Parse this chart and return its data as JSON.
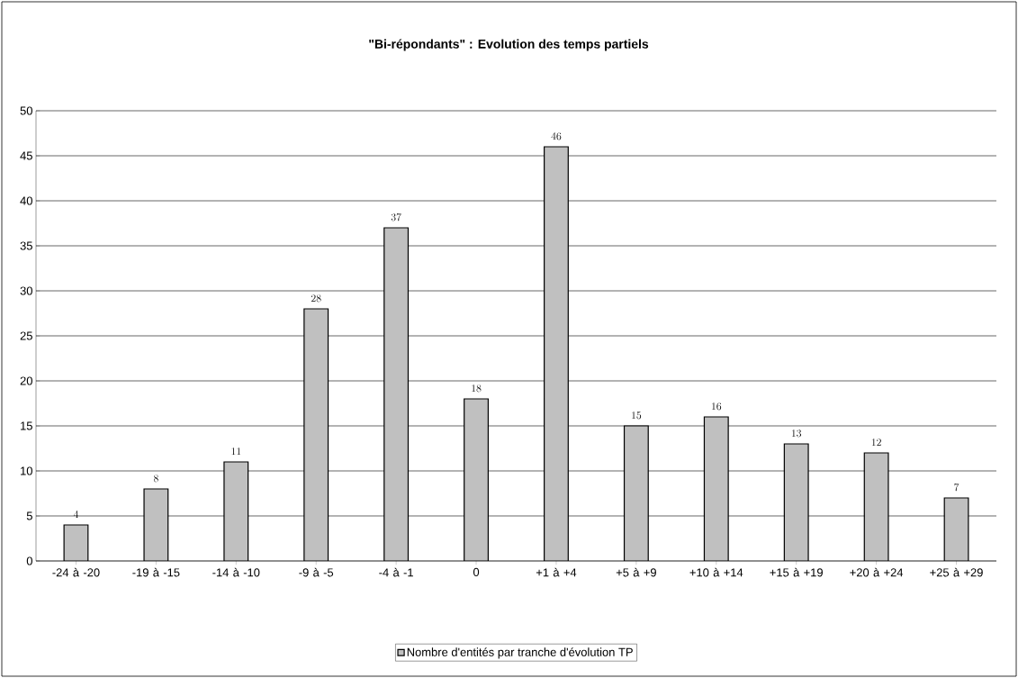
{
  "chart_data": {
    "type": "bar",
    "title": "\"Bi-répondants\" : Evolution des temps partiels",
    "categories": [
      "-24 à -20",
      "-19 à -15",
      "-14 à -10",
      "-9 à -5",
      "-4 à -1",
      "0",
      "+1 à +4",
      "+5 à +9",
      "+10 à +14",
      "+15 à +19",
      "+20 à +24",
      "+25 à +29"
    ],
    "series": [
      {
        "name": "Nombre d'entités par tranche d'évolution TP",
        "color": "#c0c0c0",
        "values": [
          4,
          8,
          11,
          28,
          37,
          18,
          46,
          15,
          16,
          13,
          12,
          7
        ]
      }
    ],
    "ylim": [
      0,
      50
    ],
    "yticks": [
      0,
      5,
      10,
      15,
      20,
      25,
      30,
      35,
      40,
      45,
      50
    ],
    "grid": "y",
    "legend": "bottom",
    "data_labels": true
  }
}
